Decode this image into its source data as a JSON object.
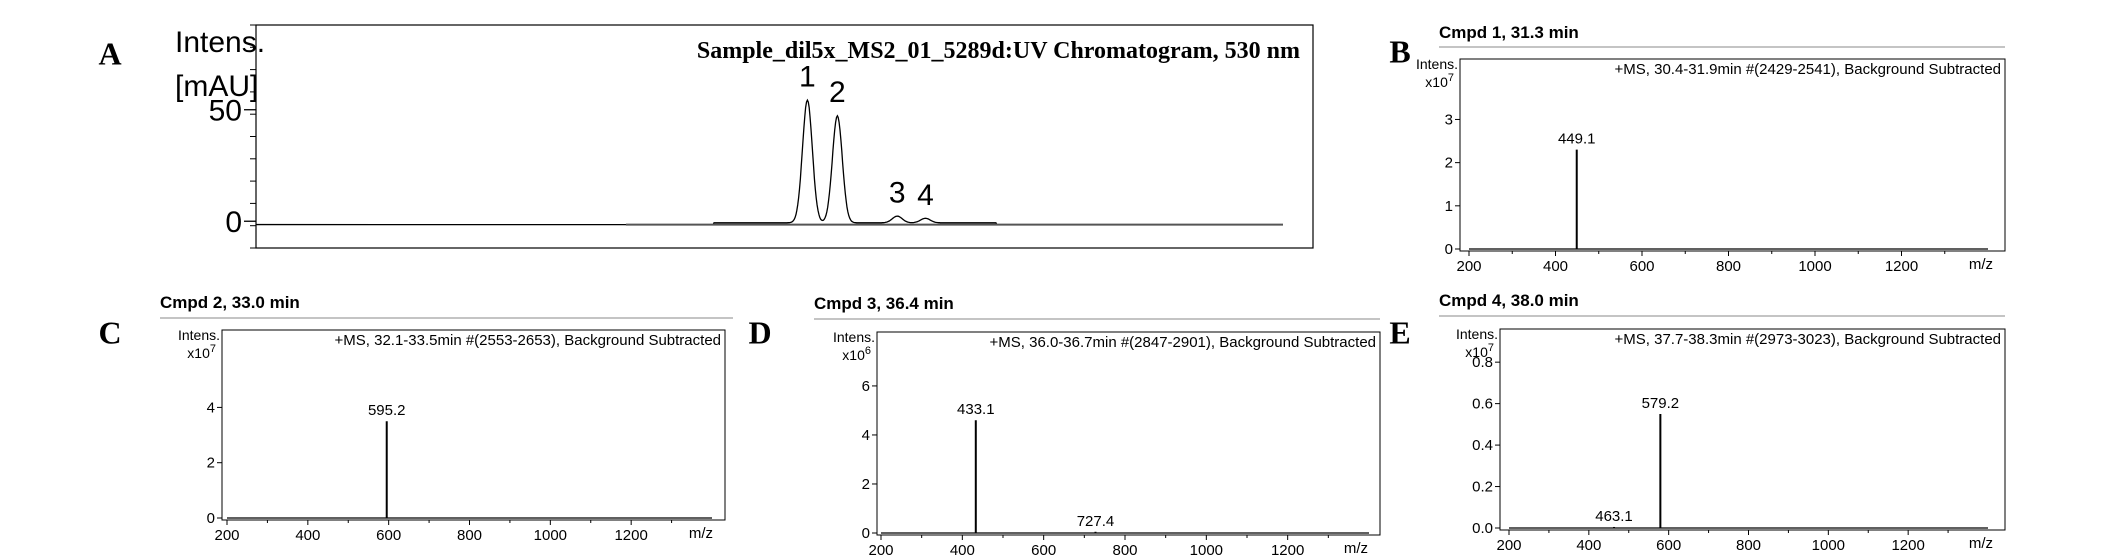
{
  "panels": [
    {
      "letter": "A"
    },
    {
      "letter": "B",
      "header": "Cmpd 1, 31.3 min"
    },
    {
      "letter": "C",
      "header": "Cmpd 2, 33.0 min"
    },
    {
      "letter": "D",
      "header": "Cmpd 3, 36.4 min"
    },
    {
      "letter": "E",
      "header": "Cmpd 4, 38.0 min"
    }
  ],
  "chart_data": [
    {
      "panel": "A",
      "type": "line",
      "title": "Sample_dil5x_MS2_01_5289d:UV Chromatogram, 530 nm",
      "ylabel_lines": [
        "Intens.",
        "[mAU]"
      ],
      "y_ticks": [
        0,
        50
      ],
      "y_tick_labels": [
        "0",
        "50"
      ],
      "ylim": [
        -12,
        88
      ],
      "xlim": [
        0,
        60
      ],
      "peaks": [
        {
          "label": "1",
          "x": 31.3,
          "height": 55
        },
        {
          "label": "2",
          "x": 33.0,
          "height": 48
        },
        {
          "label": "3",
          "x": 36.4,
          "height": 3
        },
        {
          "label": "4",
          "x": 38.0,
          "height": 2
        }
      ],
      "grid": false
    },
    {
      "panel": "B",
      "type": "bar",
      "title": "+MS, 30.4-31.9min #(2429-2541), Background Subtracted",
      "ylabel": "Intens.",
      "y_multiplier": "x10^7",
      "y_multiplier_base": "x10",
      "y_multiplier_exp": "7",
      "xlabel": "m/z",
      "x_ticks": [
        200,
        400,
        600,
        800,
        1000,
        1200
      ],
      "y_ticks": [
        0,
        1,
        2,
        3
      ],
      "y_tick_labels": [
        "0",
        "1",
        "2",
        "3"
      ],
      "xlim": [
        200,
        1400
      ],
      "ylim": [
        0,
        4.4
      ],
      "peaks": [
        {
          "mz": 449.1,
          "intensity": 2.3,
          "label": "449.1"
        }
      ]
    },
    {
      "panel": "C",
      "type": "bar",
      "title": "+MS, 32.1-33.5min #(2553-2653), Background Subtracted",
      "ylabel": "Intens.",
      "y_multiplier": "x10^7",
      "y_multiplier_base": "x10",
      "y_multiplier_exp": "7",
      "xlabel": "m/z",
      "x_ticks": [
        200,
        400,
        600,
        800,
        1000,
        1200
      ],
      "y_ticks": [
        0,
        2,
        4
      ],
      "y_tick_labels": [
        "0",
        "2",
        "4"
      ],
      "xlim": [
        200,
        1400
      ],
      "ylim": [
        0,
        6.8
      ],
      "peaks": [
        {
          "mz": 595.2,
          "intensity": 3.5,
          "label": "595.2"
        }
      ]
    },
    {
      "panel": "D",
      "type": "bar",
      "title": "+MS, 36.0-36.7min #(2847-2901), Background Subtracted",
      "ylabel": "Intens.",
      "y_multiplier": "x10^6",
      "y_multiplier_base": "x10",
      "y_multiplier_exp": "6",
      "xlabel": "m/z",
      "x_ticks": [
        200,
        400,
        600,
        800,
        1000,
        1200
      ],
      "y_ticks": [
        0,
        2,
        4,
        6
      ],
      "y_tick_labels": [
        "0",
        "2",
        "4",
        "6"
      ],
      "xlim": [
        200,
        1400
      ],
      "ylim": [
        0,
        8.2
      ],
      "peaks": [
        {
          "mz": 433.1,
          "intensity": 4.6,
          "label": "433.1"
        },
        {
          "mz": 727.4,
          "intensity": 0.05,
          "label": "727.4"
        }
      ]
    },
    {
      "panel": "E",
      "type": "bar",
      "title": "+MS, 37.7-38.3min #(2973-3023), Background Subtracted",
      "ylabel": "Intens.",
      "y_multiplier": "x10^7",
      "y_multiplier_base": "x10",
      "y_multiplier_exp": "7",
      "xlabel": "m/z",
      "x_ticks": [
        200,
        400,
        600,
        800,
        1000,
        1200
      ],
      "y_ticks": [
        0.0,
        0.2,
        0.4,
        0.6,
        0.8
      ],
      "y_tick_labels": [
        "0.0",
        "0.2",
        "0.4",
        "0.6",
        "0.8"
      ],
      "xlim": [
        200,
        1400
      ],
      "ylim": [
        0,
        0.96
      ],
      "peaks": [
        {
          "mz": 463.1,
          "intensity": 0.005,
          "label": "463.1"
        },
        {
          "mz": 579.2,
          "intensity": 0.55,
          "label": "579.2"
        }
      ]
    }
  ]
}
